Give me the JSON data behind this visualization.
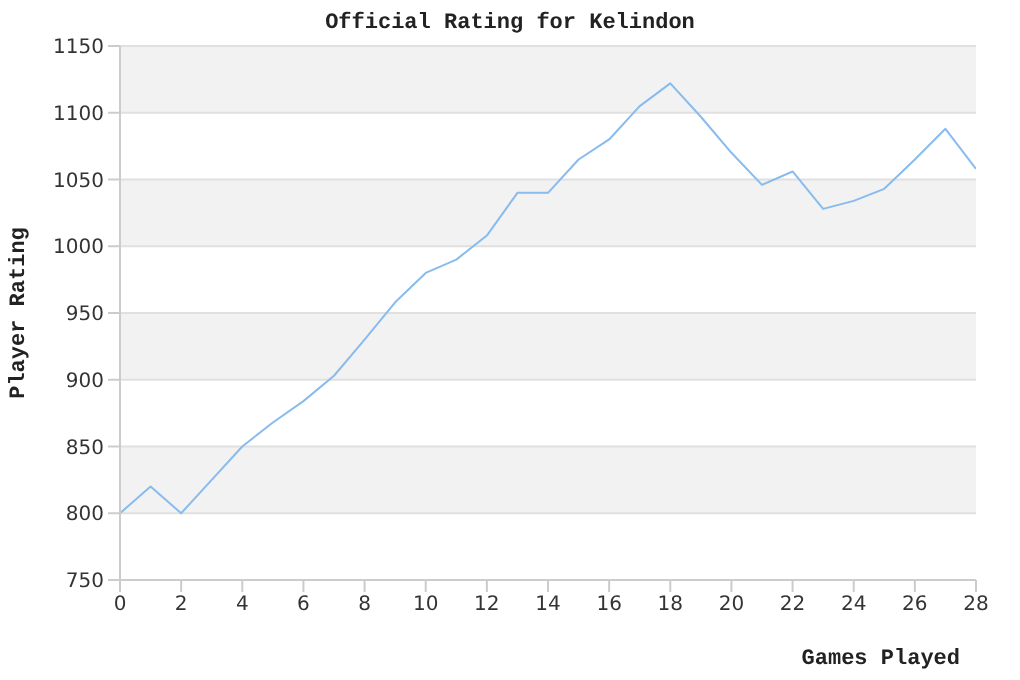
{
  "chart_data": {
    "type": "line",
    "title": "Official Rating for Kelindon",
    "xlabel": "Games Played",
    "ylabel": "Player Rating",
    "x": [
      0,
      1,
      2,
      3,
      4,
      5,
      6,
      7,
      8,
      9,
      10,
      11,
      12,
      13,
      14,
      15,
      16,
      17,
      18,
      19,
      20,
      21,
      22,
      23,
      24,
      25,
      26,
      27,
      28
    ],
    "series": [
      {
        "color": "#88bbee",
        "values": [
          800,
          820,
          800,
          825,
          850,
          868,
          884,
          903,
          930,
          958,
          980,
          990,
          1008,
          1040,
          1040,
          1065,
          1080,
          1105,
          1122,
          1097,
          1070,
          1046,
          1056,
          1028,
          1034,
          1043,
          1065,
          1088,
          1058
        ]
      }
    ],
    "xlim": [
      0,
      28
    ],
    "xticks": [
      0,
      2,
      4,
      6,
      8,
      10,
      12,
      14,
      16,
      18,
      20,
      22,
      24,
      26,
      28
    ],
    "ylim": [
      750,
      1150
    ],
    "yticks": [
      750,
      800,
      850,
      900,
      950,
      1000,
      1050,
      1100,
      1150
    ],
    "grid": "y",
    "legend": false,
    "marker": "none",
    "line_style": "solid"
  }
}
